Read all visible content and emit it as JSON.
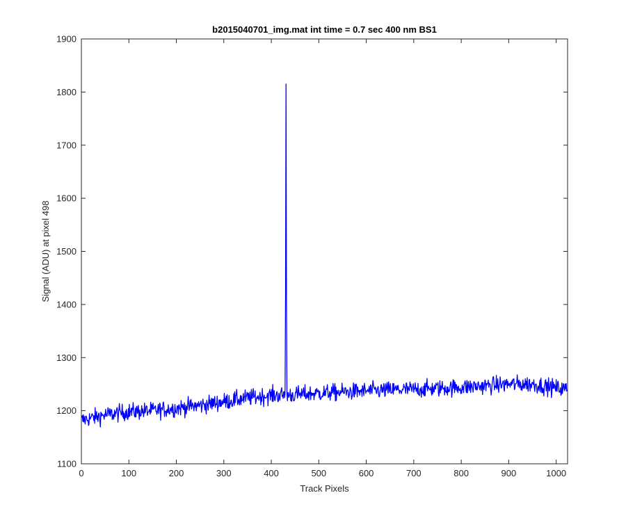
{
  "chart_data": {
    "type": "line",
    "title": "b2015040701_img.mat int time = 0.7 sec  400 nm BS1",
    "xlabel": "Track Pixels",
    "ylabel": "Signal (ADU) at pixel 498",
    "xlim": [
      0,
      1024
    ],
    "ylim": [
      1100,
      1900
    ],
    "xticks": [
      0,
      100,
      200,
      300,
      400,
      500,
      600,
      700,
      800,
      900,
      1000
    ],
    "yticks": [
      1100,
      1200,
      1300,
      1400,
      1500,
      1600,
      1700,
      1800,
      1900
    ],
    "grid": false,
    "series": [
      {
        "color": "#0000ff",
        "baseline_points": {
          "x": [
            0,
            50,
            100,
            150,
            200,
            250,
            300,
            350,
            400,
            450,
            500,
            550,
            600,
            650,
            700,
            750,
            800,
            850,
            900,
            950,
            1000,
            1023
          ],
          "y": [
            1182,
            1192,
            1198,
            1200,
            1205,
            1210,
            1217,
            1224,
            1229,
            1230,
            1233,
            1235,
            1237,
            1239,
            1240,
            1242,
            1244,
            1247,
            1250,
            1250,
            1243,
            1240
          ]
        },
        "spike": {
          "x": [
            430,
            431,
            432,
            433
          ],
          "y": [
            1420,
            1815,
            1400,
            1232
          ]
        },
        "noise_amplitude": 8,
        "n_points": 1024
      }
    ]
  }
}
